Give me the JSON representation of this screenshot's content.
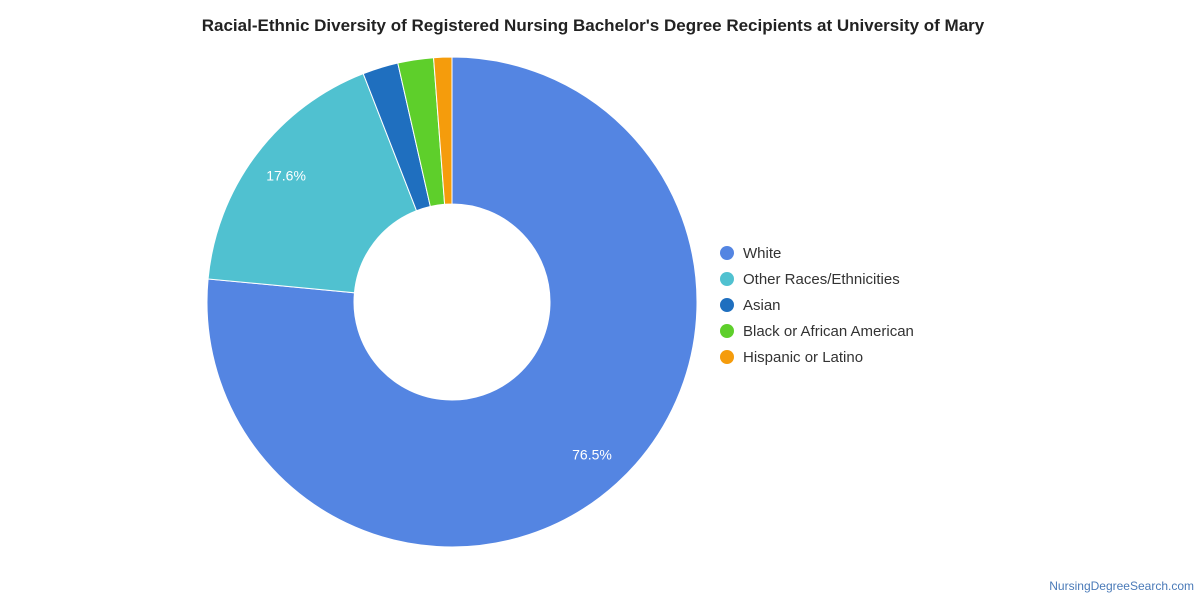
{
  "chart_data": {
    "type": "pie",
    "style": "donut",
    "title": "Racial-Ethnic Diversity of Registered Nursing Bachelor's Degree Recipients at University of Mary",
    "legend_position": "right",
    "slices": [
      {
        "label": "White",
        "value": 76.5,
        "color": "#5485e2",
        "data_label": "76.5%"
      },
      {
        "label": "Other Races/Ethnicities",
        "value": 17.6,
        "color": "#50c1d0",
        "data_label": "17.6%"
      },
      {
        "label": "Asian",
        "value": 2.35,
        "color": "#1f6fbf",
        "data_label": ""
      },
      {
        "label": "Black or African American",
        "value": 2.35,
        "color": "#5ecf2b",
        "data_label": ""
      },
      {
        "label": "Hispanic or Latino",
        "value": 1.2,
        "color": "#f59c0c",
        "data_label": ""
      }
    ]
  },
  "footer": {
    "source": "NursingDegreeSearch.com"
  }
}
